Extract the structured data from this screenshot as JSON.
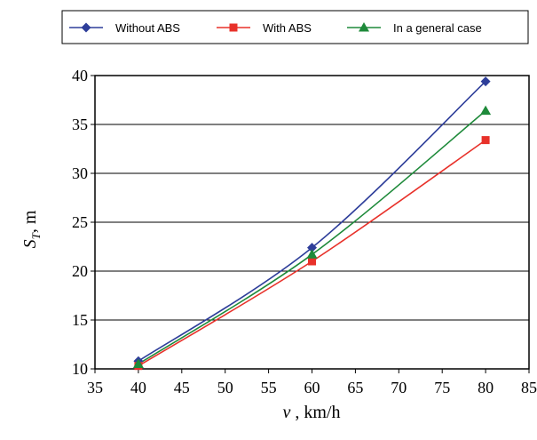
{
  "chart_data": {
    "type": "line",
    "x": [
      40,
      60,
      80
    ],
    "series": [
      {
        "name": "Without ABS",
        "values": [
          10.8,
          22.4,
          39.4
        ],
        "color": "#2E3E9A",
        "marker": "diamond"
      },
      {
        "name": "With ABS",
        "values": [
          10.3,
          21.0,
          33.4
        ],
        "color": "#E8312A",
        "marker": "square"
      },
      {
        "name": "In a general case",
        "values": [
          10.5,
          21.7,
          36.4
        ],
        "color": "#1E8A3A",
        "marker": "triangle"
      }
    ],
    "xlim": [
      35,
      85
    ],
    "ylim": [
      10,
      40
    ],
    "xticks": [
      35,
      40,
      45,
      50,
      55,
      60,
      65,
      70,
      75,
      80,
      85
    ],
    "yticks": [
      10,
      15,
      20,
      25,
      30,
      35,
      40
    ],
    "xlabel": {
      "main": "v",
      "rest": " , km/h"
    },
    "ylabel": {
      "main": "S",
      "sub": "T",
      "rest": ", m"
    },
    "grid": "horizontal",
    "legend_position": "top"
  }
}
